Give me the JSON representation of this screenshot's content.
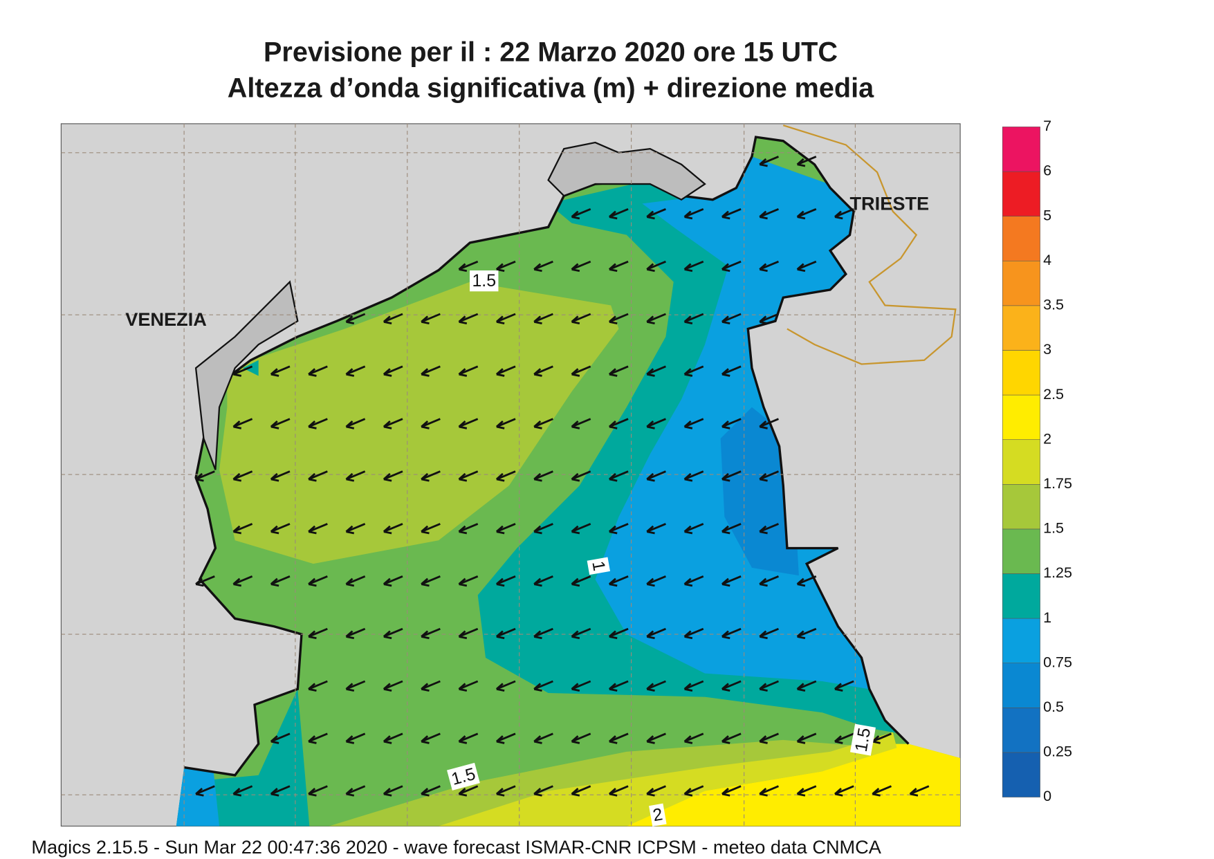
{
  "title_lines": [
    "Previsione per il  :  22   Marzo   2020   ore 15 UTC",
    "Altezza d’onda significativa (m) + direzione media"
  ],
  "places": [
    "VENEZIA",
    "TRIESTE"
  ],
  "contour_labels": [
    1.5,
    1,
    1.5,
    1.5,
    2
  ],
  "colorbar": {
    "levels": [
      0,
      0.25,
      0.5,
      0.75,
      1,
      1.25,
      1.5,
      1.75,
      2,
      2.5,
      3,
      3.5,
      4,
      5,
      6,
      7
    ],
    "colors": [
      "#1560b0",
      "#1272c2",
      "#0a88d2",
      "#0aa0e0",
      "#00a99d",
      "#6ab950",
      "#a6c83a",
      "#d5dc22",
      "#ffed00",
      "#ffd600",
      "#fbb21a",
      "#f7941d",
      "#f47920",
      "#ed1c24",
      "#ec1461"
    ]
  },
  "footer": "Magics 2.15.5 - Sun Mar 22 00:47:36 2020 - wave forecast  ISMAR-CNR  ICPSM - meteo data   CNMCA"
}
